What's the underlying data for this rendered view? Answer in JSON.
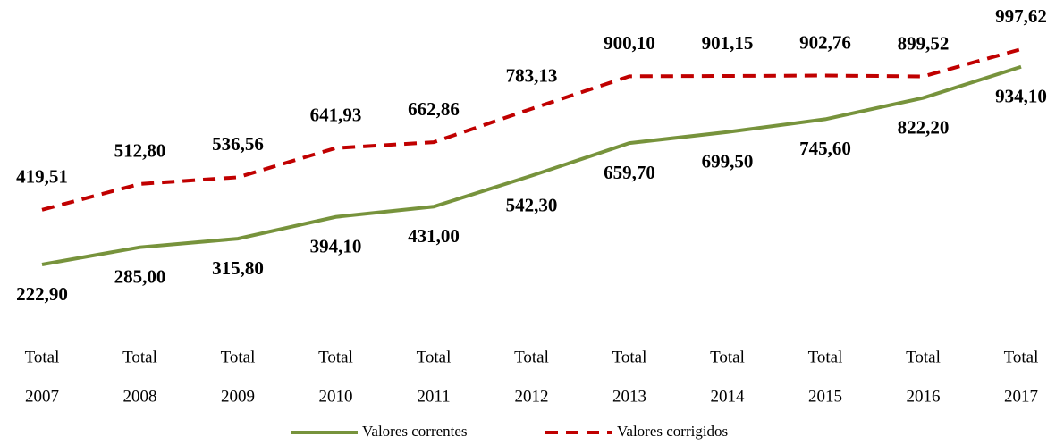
{
  "chart_data": {
    "type": "line",
    "categories": [
      [
        "Total",
        "2007"
      ],
      [
        "Total",
        "2008"
      ],
      [
        "Total",
        "2009"
      ],
      [
        "Total",
        "2010"
      ],
      [
        "Total",
        "2011"
      ],
      [
        "Total",
        "2012"
      ],
      [
        "Total",
        "2013"
      ],
      [
        "Total",
        "2014"
      ],
      [
        "Total",
        "2015"
      ],
      [
        "Total",
        "2016"
      ],
      [
        "Total",
        "2017"
      ]
    ],
    "series": [
      {
        "name": "Valores correntes",
        "color": "#77933c",
        "dash": false,
        "label_position": "below",
        "values": [
          222.9,
          285.0,
          315.8,
          394.1,
          431.0,
          542.3,
          659.7,
          699.5,
          745.6,
          822.2,
          934.1
        ],
        "value_labels": [
          "222,90",
          "285,00",
          "315,80",
          "394,10",
          "431,00",
          "542,30",
          "659,70",
          "699,50",
          "745,60",
          "822,20",
          "934,10"
        ]
      },
      {
        "name": "Valores corrigidos",
        "color": "#c00000",
        "dash": true,
        "label_position": "above",
        "values": [
          419.51,
          512.8,
          536.56,
          641.93,
          662.86,
          783.13,
          900.1,
          901.15,
          902.76,
          899.52,
          997.62
        ],
        "value_labels": [
          "419,51",
          "512,80",
          "536,56",
          "641,93",
          "662,86",
          "783,13",
          "900,10",
          "901,15",
          "902,76",
          "899,52",
          "997,62"
        ]
      }
    ],
    "legend": "bottom"
  }
}
